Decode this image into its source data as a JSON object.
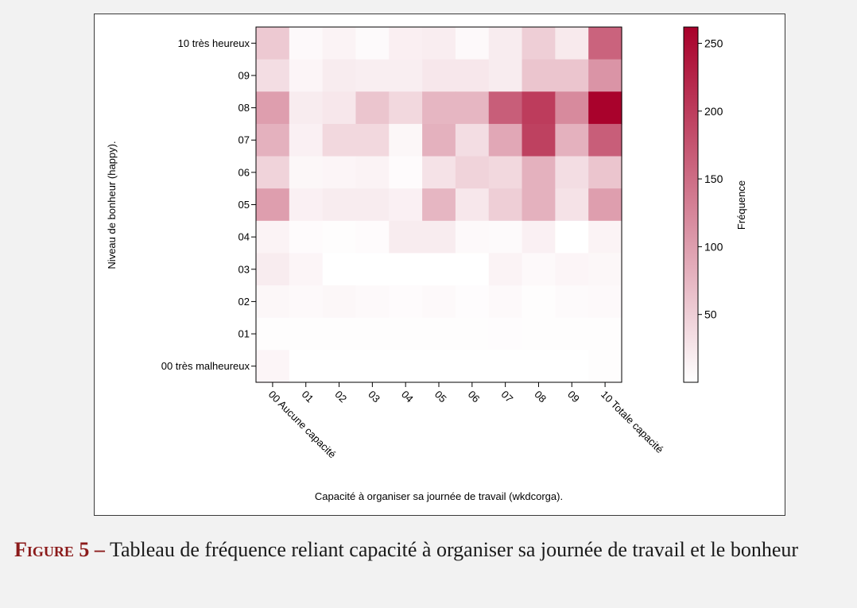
{
  "caption": {
    "label": "Figure 5 –",
    "text": "Tableau de fréquence reliant capacité à organiser sa journée de travail et le bonheur"
  },
  "colors": {
    "low": "#ffffff",
    "high": "#a8002a"
  },
  "chart_data": {
    "type": "heatmap",
    "xlabel": "Capacité à organiser sa journée de travail (wkdcorga).",
    "ylabel": "Niveau de bonheur (happy).",
    "x_categories": [
      "00 Aucune capacité",
      "01",
      "02",
      "03",
      "04",
      "05",
      "06",
      "07",
      "08",
      "09",
      "10 Totale capacité"
    ],
    "y_categories": [
      "10 très heureux",
      "09",
      "08",
      "07",
      "06",
      "05",
      "04",
      "03",
      "02",
      "01",
      "00 très malheureux"
    ],
    "values": [
      [
        55,
        6,
        12,
        5,
        16,
        18,
        6,
        20,
        50,
        22,
        160
      ],
      [
        35,
        10,
        20,
        17,
        17,
        25,
        25,
        20,
        60,
        60,
        110
      ],
      [
        100,
        20,
        25,
        60,
        40,
        75,
        75,
        165,
        200,
        120,
        260
      ],
      [
        80,
        15,
        40,
        40,
        8,
        80,
        35,
        90,
        195,
        80,
        165
      ],
      [
        45,
        8,
        10,
        12,
        4,
        30,
        45,
        40,
        80,
        35,
        60
      ],
      [
        100,
        15,
        20,
        20,
        15,
        75,
        25,
        50,
        80,
        30,
        100
      ],
      [
        12,
        4,
        2,
        4,
        20,
        20,
        6,
        5,
        15,
        0,
        12
      ],
      [
        20,
        10,
        0,
        0,
        0,
        0,
        0,
        12,
        6,
        10,
        8
      ],
      [
        8,
        6,
        8,
        6,
        4,
        6,
        3,
        6,
        2,
        5,
        6
      ],
      [
        2,
        2,
        2,
        2,
        2,
        2,
        2,
        3,
        2,
        2,
        2
      ],
      [
        10,
        0,
        0,
        0,
        0,
        0,
        0,
        0,
        0,
        0,
        2
      ]
    ],
    "colorbar": {
      "label": "Fréquence",
      "ticks": [
        50,
        100,
        150,
        200,
        250
      ],
      "range": [
        0,
        262
      ]
    }
  }
}
